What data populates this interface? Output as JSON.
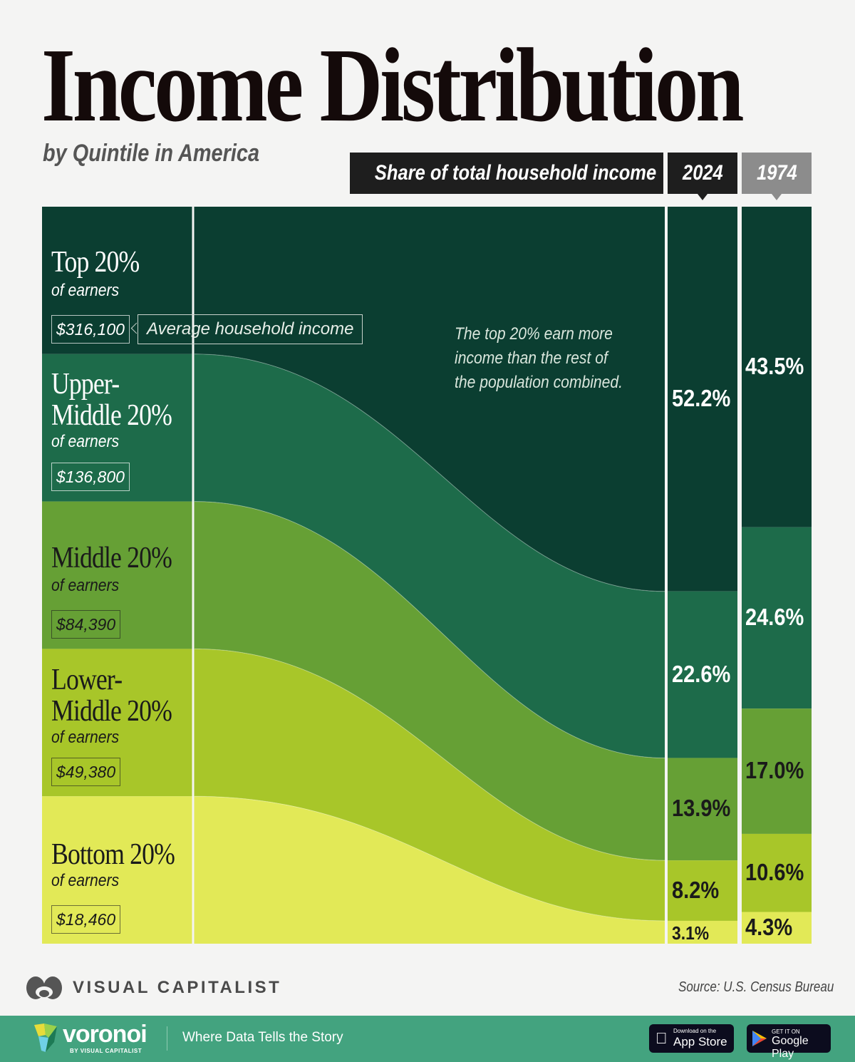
{
  "title": "Income Distribution",
  "subtitle": "by Quintile in America",
  "header": {
    "share_label": "Share of total household income",
    "year_2024": "2024",
    "year_1974": "1974"
  },
  "annotation": "The top 20% earn more income than the rest of the population combined.",
  "annotation_lines": [
    "The top 20% earn more",
    "income than the rest of",
    "the population combined."
  ],
  "avg_income_label": "Average household income",
  "chart_data": {
    "type": "area",
    "title": "Income Distribution",
    "subtitle": "by Quintile in America",
    "ylabel": "Share of total household income",
    "categories": [
      "Top 20%",
      "Upper-Middle 20%",
      "Middle 20%",
      "Lower-Middle 20%",
      "Bottom 20%"
    ],
    "series": [
      {
        "name": "2024",
        "values": [
          52.2,
          22.6,
          13.9,
          8.2,
          3.1
        ],
        "labels": [
          "52.2%",
          "22.6%",
          "13.9%",
          "8.2%",
          "3.1%"
        ]
      },
      {
        "name": "1974",
        "values": [
          43.5,
          24.6,
          17.0,
          10.6,
          4.3
        ],
        "labels": [
          "43.5%",
          "24.6%",
          "17.0%",
          "10.6%",
          "4.3%"
        ]
      }
    ],
    "avg_household_income": [
      316100,
      136800,
      84390,
      49380,
      18460
    ],
    "colors": [
      "#0b3e31",
      "#1d6b4a",
      "#66a035",
      "#a8c629",
      "#e2e957"
    ],
    "text_colors": [
      "#ffffff",
      "#ffffff",
      "#1a1a1a",
      "#1a1a1a",
      "#1a1a1a"
    ]
  },
  "quintiles": [
    {
      "line1": "Top 20%",
      "line2": "",
      "sub": "of earners",
      "income": "$316,100"
    },
    {
      "line1": "Upper-",
      "line2": "Middle 20%",
      "sub": "of earners",
      "income": "$136,800"
    },
    {
      "line1": "Middle 20%",
      "line2": "",
      "sub": "of earners",
      "income": "$84,390"
    },
    {
      "line1": "Lower-",
      "line2": "Middle 20%",
      "sub": "of earners",
      "income": "$49,380"
    },
    {
      "line1": "Bottom 20%",
      "line2": "",
      "sub": "of earners",
      "income": "$18,460"
    }
  ],
  "footer": {
    "brand": "VISUAL CAPITALIST",
    "source": "Source: U.S. Census Bureau",
    "voronoi": "voronoi",
    "voronoi_by": "BY VISUAL CAPITALIST",
    "tagline": "Where Data Tells the Story",
    "app_store_small": "Download on the",
    "app_store": "App Store",
    "google_small": "GET IT ON",
    "google": "Google Play"
  }
}
